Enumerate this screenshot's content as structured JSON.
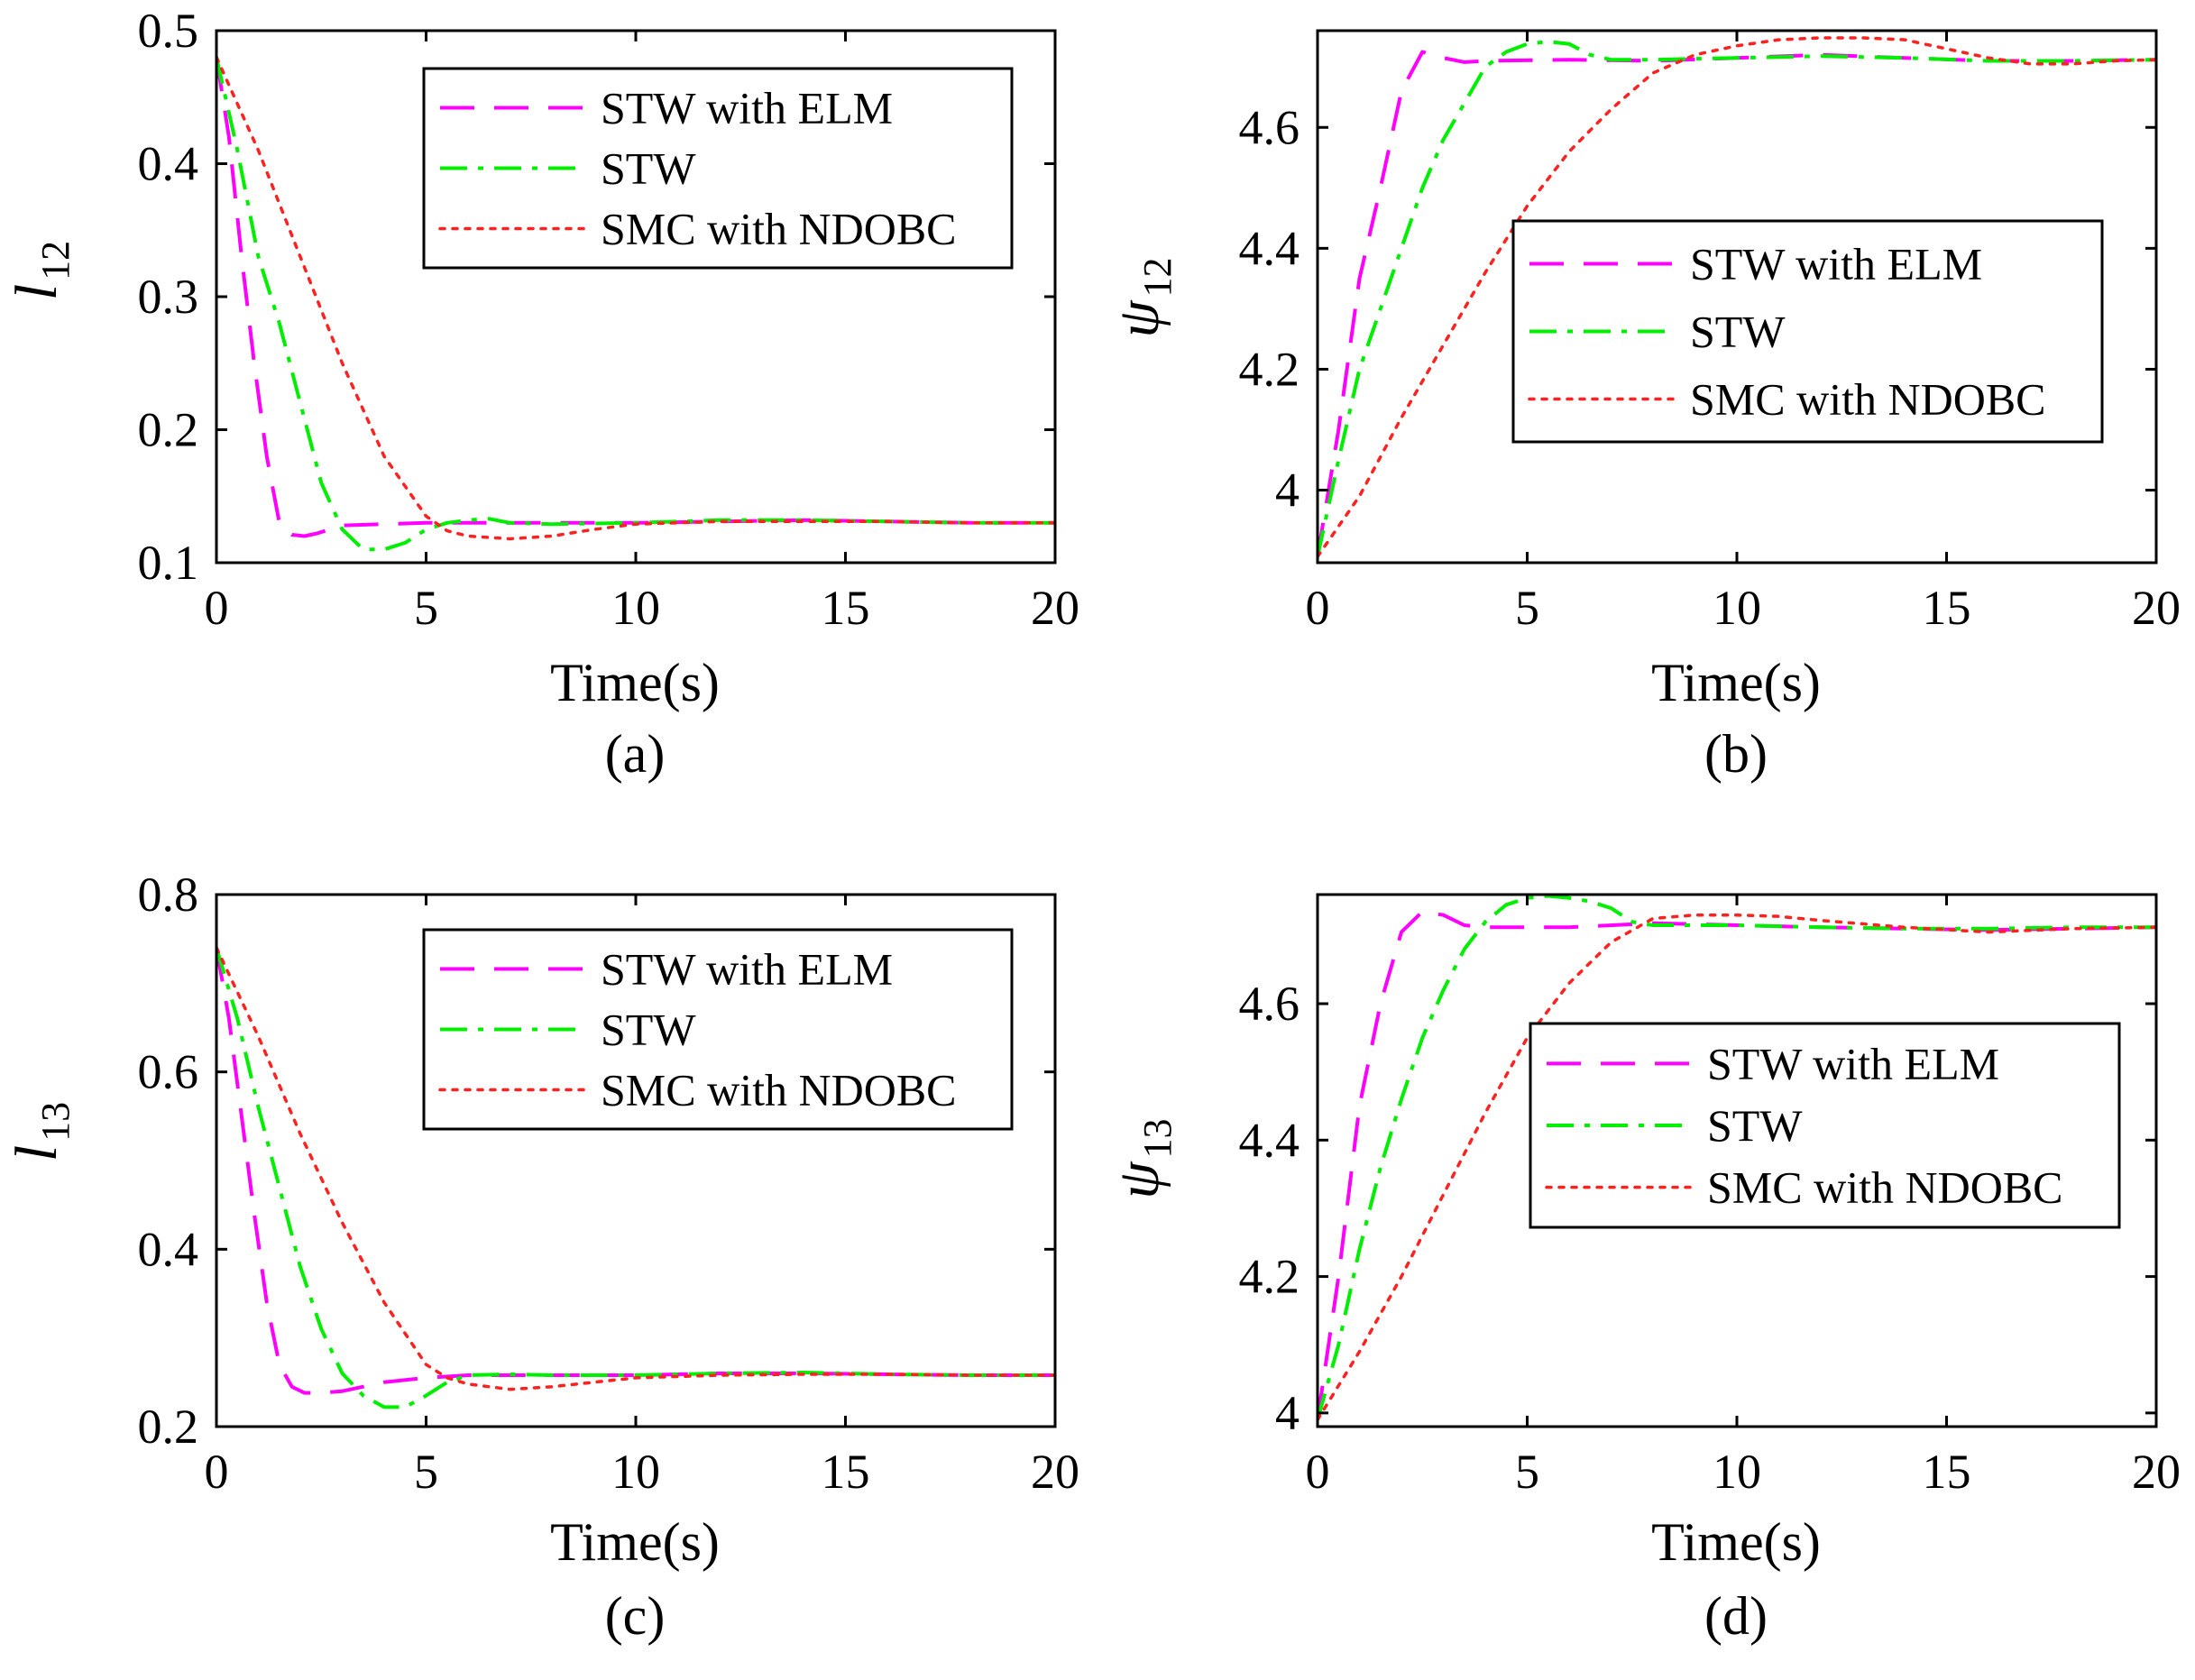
{
  "colors": {
    "stw_elm": "#ff00ff",
    "stw": "#00ee00",
    "smc_ndobc": "#ff2020",
    "axes": "#000000",
    "background": "#ffffff"
  },
  "chart_data": [
    {
      "id": "a",
      "type": "line",
      "caption": "(a)",
      "xlabel": "Time(s)",
      "ylabel_main": "l",
      "ylabel_sub": "12",
      "xlim": [
        0,
        20
      ],
      "ylim": [
        0.1,
        0.5
      ],
      "xticks": [
        0,
        5,
        10,
        15,
        20
      ],
      "yticks": [
        0.1,
        0.2,
        0.3,
        0.4,
        0.5
      ],
      "ytick_labels": [
        "0.1",
        "0.2",
        "0.3",
        "0.4",
        "0.5"
      ],
      "legend": {
        "placement": "top-right",
        "entries": [
          "STW with ELM",
          "STW",
          "SMC with NDOBC"
        ]
      },
      "series": [
        {
          "name": "STW with ELM",
          "style": "dashed",
          "color_key": "stw_elm",
          "x": [
            0,
            0.3,
            0.6,
            0.9,
            1.2,
            1.5,
            1.8,
            2.1,
            2.4,
            3,
            4,
            5,
            6,
            8,
            10,
            12,
            14,
            16,
            18,
            20
          ],
          "y": [
            0.48,
            0.42,
            0.33,
            0.25,
            0.18,
            0.13,
            0.121,
            0.12,
            0.122,
            0.128,
            0.129,
            0.13,
            0.13,
            0.13,
            0.13,
            0.131,
            0.132,
            0.131,
            0.13,
            0.13
          ]
        },
        {
          "name": "STW",
          "style": "dashdot",
          "color_key": "stw",
          "x": [
            0,
            0.5,
            1,
            1.5,
            2,
            2.5,
            3,
            3.5,
            4,
            4.5,
            5,
            5.5,
            6,
            6.5,
            7,
            8,
            10,
            12,
            14,
            16,
            18,
            20
          ],
          "y": [
            0.48,
            0.41,
            0.33,
            0.28,
            0.22,
            0.16,
            0.125,
            0.11,
            0.11,
            0.115,
            0.125,
            0.13,
            0.132,
            0.133,
            0.13,
            0.129,
            0.13,
            0.132,
            0.132,
            0.131,
            0.13,
            0.13
          ]
        },
        {
          "name": "SMC with NDOBC",
          "style": "dotted",
          "color_key": "smc_ndobc",
          "x": [
            0,
            1,
            2,
            3,
            4,
            5,
            5.5,
            6,
            7,
            8,
            9,
            10,
            12,
            14,
            16,
            18,
            20
          ],
          "y": [
            0.48,
            0.41,
            0.33,
            0.25,
            0.18,
            0.135,
            0.124,
            0.12,
            0.118,
            0.12,
            0.125,
            0.129,
            0.131,
            0.131,
            0.131,
            0.13,
            0.13
          ]
        }
      ]
    },
    {
      "id": "b",
      "type": "line",
      "caption": "(b)",
      "xlabel": "Time(s)",
      "ylabel_main": "ψ",
      "ylabel_sub": "12",
      "xlim": [
        0,
        20
      ],
      "ylim": [
        3.88,
        4.76
      ],
      "xticks": [
        0,
        5,
        10,
        15,
        20
      ],
      "yticks": [
        4.0,
        4.2,
        4.4,
        4.6
      ],
      "ytick_labels": [
        "4",
        "4.2",
        "4.4",
        "4.6"
      ],
      "legend": {
        "placement": "center-right",
        "entries": [
          "STW with ELM",
          "STW",
          "SMC with NDOBC"
        ]
      },
      "series": [
        {
          "name": "STW with ELM",
          "style": "dashed",
          "color_key": "stw_elm",
          "x": [
            0,
            0.5,
            1,
            1.5,
            2,
            2.5,
            3,
            3.5,
            4,
            6,
            8,
            10,
            12,
            14,
            16,
            18,
            20
          ],
          "y": [
            3.89,
            4.1,
            4.35,
            4.5,
            4.66,
            4.725,
            4.715,
            4.708,
            4.71,
            4.712,
            4.71,
            4.715,
            4.72,
            4.715,
            4.71,
            4.71,
            4.712
          ]
        },
        {
          "name": "STW",
          "style": "dashdot",
          "color_key": "stw",
          "x": [
            0,
            0.5,
            1,
            1.5,
            2,
            2.5,
            3,
            3.5,
            4,
            4.5,
            5,
            5.5,
            6,
            6.5,
            7,
            8,
            10,
            12,
            14,
            16,
            18,
            20
          ],
          "y": [
            3.89,
            4.05,
            4.2,
            4.3,
            4.4,
            4.5,
            4.58,
            4.64,
            4.7,
            4.725,
            4.738,
            4.742,
            4.738,
            4.72,
            4.712,
            4.712,
            4.715,
            4.718,
            4.715,
            4.71,
            4.71,
            4.712
          ]
        },
        {
          "name": "SMC with NDOBC",
          "style": "dotted",
          "color_key": "smc_ndobc",
          "x": [
            0,
            1,
            2,
            3,
            4,
            5,
            6,
            7,
            8,
            9,
            10,
            11,
            12,
            13,
            14,
            15,
            16,
            17,
            18,
            19,
            20
          ],
          "y": [
            3.89,
            3.99,
            4.12,
            4.24,
            4.36,
            4.47,
            4.56,
            4.63,
            4.69,
            4.72,
            4.735,
            4.745,
            4.748,
            4.748,
            4.745,
            4.73,
            4.715,
            4.705,
            4.705,
            4.71,
            4.712
          ]
        }
      ]
    },
    {
      "id": "c",
      "type": "line",
      "caption": "(c)",
      "xlabel": "Time(s)",
      "ylabel_main": "l",
      "ylabel_sub": "13",
      "xlim": [
        0,
        20
      ],
      "ylim": [
        0.2,
        0.8
      ],
      "xticks": [
        0,
        5,
        10,
        15,
        20
      ],
      "yticks": [
        0.2,
        0.4,
        0.6,
        0.8
      ],
      "ytick_labels": [
        "0.2",
        "0.4",
        "0.6",
        "0.8"
      ],
      "legend": {
        "placement": "top-right",
        "entries": [
          "STW with ELM",
          "STW",
          "SMC with NDOBC"
        ]
      },
      "series": [
        {
          "name": "STW with ELM",
          "style": "dashed",
          "color_key": "stw_elm",
          "x": [
            0,
            0.3,
            0.6,
            0.9,
            1.2,
            1.5,
            1.8,
            2.1,
            2.5,
            3,
            4,
            5,
            6,
            8,
            10,
            12,
            14,
            16,
            18,
            20
          ],
          "y": [
            0.74,
            0.66,
            0.55,
            0.44,
            0.34,
            0.27,
            0.245,
            0.238,
            0.238,
            0.24,
            0.25,
            0.255,
            0.258,
            0.258,
            0.258,
            0.26,
            0.26,
            0.259,
            0.258,
            0.258
          ]
        },
        {
          "name": "STW",
          "style": "dashdot",
          "color_key": "stw",
          "x": [
            0,
            0.5,
            1,
            1.5,
            2,
            2.5,
            3,
            3.5,
            4,
            4.5,
            5,
            5.5,
            6,
            7,
            8,
            10,
            12,
            14,
            16,
            18,
            20
          ],
          "y": [
            0.74,
            0.66,
            0.56,
            0.47,
            0.38,
            0.31,
            0.26,
            0.235,
            0.222,
            0.222,
            0.235,
            0.25,
            0.258,
            0.259,
            0.258,
            0.258,
            0.26,
            0.261,
            0.259,
            0.258,
            0.258
          ]
        },
        {
          "name": "SMC with NDOBC",
          "style": "dotted",
          "color_key": "smc_ndobc",
          "x": [
            0,
            1,
            2,
            3,
            4,
            5,
            5.5,
            6,
            7,
            8,
            9,
            10,
            12,
            14,
            16,
            18,
            20
          ],
          "y": [
            0.74,
            0.64,
            0.53,
            0.43,
            0.34,
            0.27,
            0.255,
            0.248,
            0.242,
            0.245,
            0.25,
            0.255,
            0.258,
            0.259,
            0.259,
            0.258,
            0.258
          ]
        }
      ]
    },
    {
      "id": "d",
      "type": "line",
      "caption": "(d)",
      "xlabel": "Time(s)",
      "ylabel_main": "ψ",
      "ylabel_sub": "13",
      "xlim": [
        0,
        20
      ],
      "ylim": [
        3.98,
        4.76
      ],
      "xticks": [
        0,
        5,
        10,
        15,
        20
      ],
      "yticks": [
        4.0,
        4.2,
        4.4,
        4.6
      ],
      "ytick_labels": [
        "4",
        "4.2",
        "4.4",
        "4.6"
      ],
      "legend": {
        "placement": "center-right",
        "entries": [
          "STW with ELM",
          "STW",
          "SMC with NDOBC"
        ]
      },
      "series": [
        {
          "name": "STW with ELM",
          "style": "dashed",
          "color_key": "stw_elm",
          "x": [
            0,
            0.5,
            1,
            1.5,
            2,
            2.5,
            3,
            3.5,
            4,
            6,
            8,
            10,
            12,
            14,
            16,
            18,
            20
          ],
          "y": [
            3.99,
            4.2,
            4.45,
            4.6,
            4.705,
            4.735,
            4.73,
            4.715,
            4.712,
            4.712,
            4.718,
            4.715,
            4.712,
            4.71,
            4.708,
            4.71,
            4.712
          ]
        },
        {
          "name": "STW",
          "style": "dashdot",
          "color_key": "stw",
          "x": [
            0,
            0.5,
            1,
            1.5,
            2,
            2.5,
            3,
            3.5,
            4,
            4.5,
            5,
            5.5,
            6,
            6.5,
            7,
            7.5,
            8,
            10,
            12,
            14,
            16,
            18,
            20
          ],
          "y": [
            3.99,
            4.1,
            4.24,
            4.36,
            4.46,
            4.55,
            4.62,
            4.68,
            4.72,
            4.745,
            4.755,
            4.758,
            4.755,
            4.75,
            4.74,
            4.72,
            4.715,
            4.715,
            4.712,
            4.71,
            4.71,
            4.712,
            4.712
          ]
        },
        {
          "name": "SMC with NDOBC",
          "style": "dotted",
          "color_key": "smc_ndobc",
          "x": [
            0,
            1,
            2,
            3,
            4,
            5,
            6,
            7,
            8,
            9,
            10,
            11,
            12,
            14,
            16,
            18,
            20
          ],
          "y": [
            3.99,
            4.09,
            4.2,
            4.32,
            4.44,
            4.55,
            4.63,
            4.69,
            4.725,
            4.73,
            4.73,
            4.728,
            4.722,
            4.712,
            4.705,
            4.71,
            4.712
          ]
        }
      ]
    }
  ]
}
